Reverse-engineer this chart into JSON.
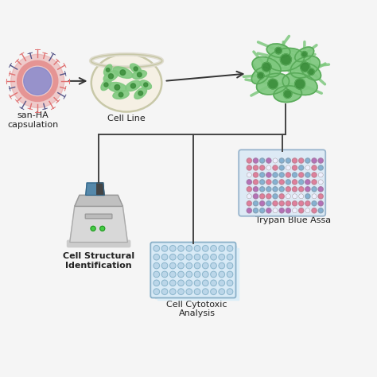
{
  "bg_color": "#f5f5f5",
  "label_nanoparticle": "san-HA\ncapsulation",
  "label_cellline": "Cell Line",
  "label_csi": "Cell Structural\nIdentification",
  "label_trypan": "Trypan Blue Assa",
  "label_cytotoxic": "Cell Cytotoxic\nAnalysis",
  "arrow_color": "#333333",
  "cell_green_light": "#7ec87e",
  "cell_green_mid": "#5aab5a",
  "cell_green_dark": "#3a8c3a",
  "plate_bg_trypan": "#ddeaf5",
  "plate_bg_3d": "#d8eaf6",
  "plate_border": "#9ab5cc",
  "line_color": "#444444",
  "nano_red": "#e07070",
  "nano_blue": "#8888cc",
  "nano_pink": "#e8a0a0",
  "reader_body": "#d8d8d8",
  "reader_dark": "#888888",
  "reader_screen": "#5588aa",
  "reader_black": "#444444"
}
